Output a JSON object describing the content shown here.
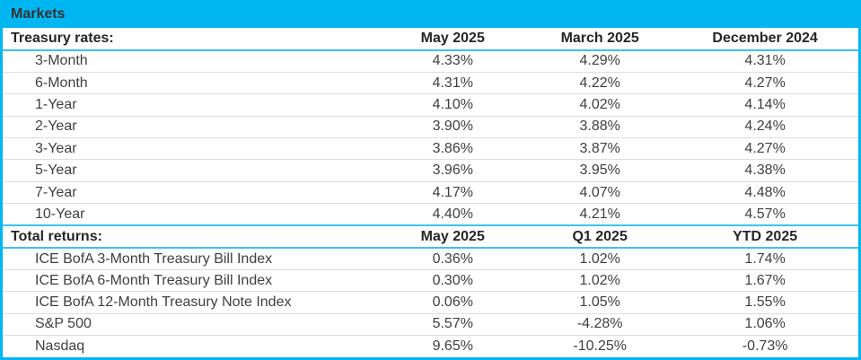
{
  "title": "Markets",
  "colors": {
    "accent": "#00b6f1",
    "accent-light": "#41c0ef",
    "separator": "#dedede",
    "text": "#3f3f3f",
    "heading-text": "#262626",
    "title-text": "#333333",
    "background": "#ffffff"
  },
  "chart_data": [
    {
      "type": "table",
      "header": [
        "Treasury rates:",
        "May 2025",
        "March 2025",
        "December 2024"
      ],
      "rows": [
        [
          "3-Month",
          "4.33%",
          "4.29%",
          "4.31%"
        ],
        [
          "6-Month",
          "4.31%",
          "4.22%",
          "4.27%"
        ],
        [
          "1-Year",
          "4.10%",
          "4.02%",
          "4.14%"
        ],
        [
          "2-Year",
          "3.90%",
          "3.88%",
          "4.24%"
        ],
        [
          "3-Year",
          "3.86%",
          "3.87%",
          "4.27%"
        ],
        [
          "5-Year",
          "3.96%",
          "3.95%",
          "4.38%"
        ],
        [
          "7-Year",
          "4.17%",
          "4.07%",
          "4.48%"
        ],
        [
          "10-Year",
          "4.40%",
          "4.21%",
          "4.57%"
        ]
      ]
    },
    {
      "type": "table",
      "header": [
        "Total returns:",
        "May 2025",
        "Q1 2025",
        "YTD 2025"
      ],
      "rows": [
        [
          "ICE BofA 3-Month Treasury Bill Index",
          "0.36%",
          "1.02%",
          "1.74%"
        ],
        [
          "ICE BofA 6-Month Treasury Bill Index",
          "0.30%",
          "1.02%",
          "1.67%"
        ],
        [
          "ICE BofA 12-Month Treasury Note Index",
          "0.06%",
          "1.05%",
          "1.55%"
        ],
        [
          "S&P 500",
          "5.57%",
          "-4.28%",
          "1.06%"
        ],
        [
          "Nasdaq",
          "9.65%",
          "-10.25%",
          "-0.73%"
        ]
      ]
    }
  ]
}
